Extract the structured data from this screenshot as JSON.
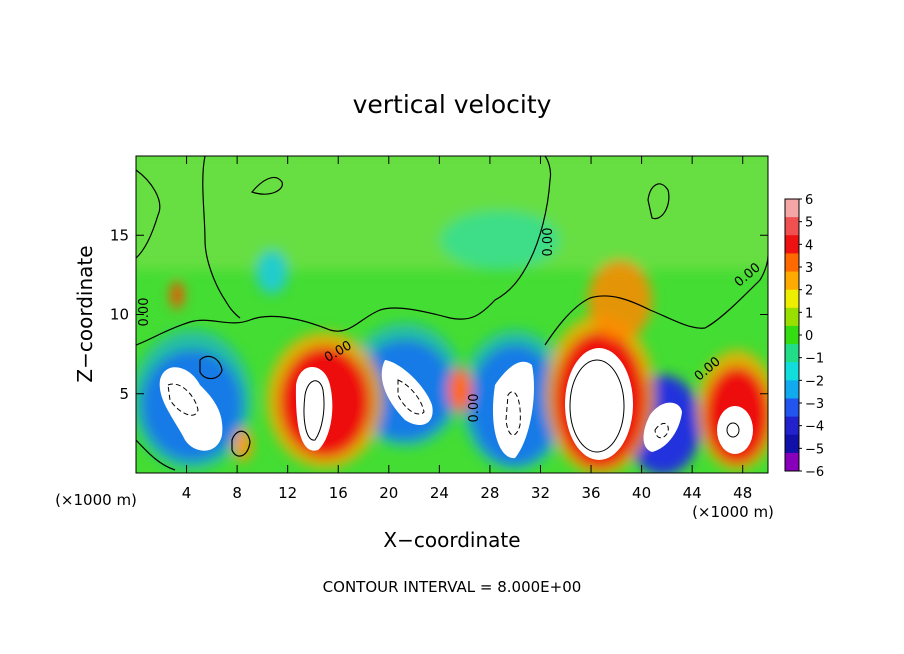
{
  "chart_data": {
    "type": "heatmap",
    "title": "vertical velocity",
    "xlabel": "X−coordinate",
    "ylabel": "Z−coordinate",
    "x_unit_left": "(×1000 m)",
    "x_unit_right": "(×1000 m)",
    "xlim": [
      0,
      50
    ],
    "ylim": [
      0,
      20
    ],
    "xticks": [
      4,
      8,
      12,
      16,
      20,
      24,
      28,
      32,
      36,
      40,
      44,
      48
    ],
    "yticks": [
      5,
      10,
      15
    ],
    "colorbar": {
      "ticks": [
        "6",
        "5",
        "4",
        "3",
        "2",
        "1",
        "0",
        "−1",
        "−2",
        "−3",
        "−4",
        "−5",
        "−6"
      ],
      "colors": [
        "#f4a6a6",
        "#f05050",
        "#ee1111",
        "#ff6a00",
        "#ffaa00",
        "#eeee00",
        "#99e000",
        "#33dd11",
        "#22dd88",
        "#11dddd",
        "#11aaee",
        "#2255ee",
        "#2222cc",
        "#1111aa",
        "#8800bb"
      ]
    },
    "contour_label": "0.00",
    "contour_interval_text": "CONTOUR INTERVAL = 8.000E+00",
    "cells": [
      {
        "x": 5,
        "z": 4,
        "value": -9
      },
      {
        "x": 14,
        "z": 4.5,
        "value": 9
      },
      {
        "x": 22,
        "z": 5,
        "value": -8
      },
      {
        "x": 26,
        "z": 5,
        "value": 3
      },
      {
        "x": 30,
        "z": 3.5,
        "value": -8
      },
      {
        "x": 36.5,
        "z": 4.5,
        "value": 10
      },
      {
        "x": 42,
        "z": 3,
        "value": -7
      },
      {
        "x": 47,
        "z": 3,
        "value": 8
      },
      {
        "x": 38,
        "z": 11,
        "value": 3
      },
      {
        "x": 3.3,
        "z": 11.2,
        "value": 4
      },
      {
        "x": 8.5,
        "z": 2,
        "value": 3
      },
      {
        "x": 10.5,
        "z": 12.5,
        "value": -2
      }
    ]
  }
}
